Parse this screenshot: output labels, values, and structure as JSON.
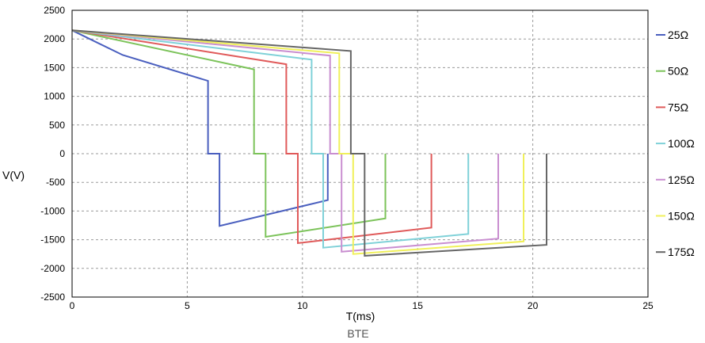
{
  "chart_data": {
    "type": "line",
    "title": "",
    "caption": "BTE",
    "xlabel": "T(ms)",
    "ylabel": "V(V)",
    "xlim": [
      0,
      25
    ],
    "ylim": [
      -2500,
      2500
    ],
    "xticks": [
      0,
      5,
      10,
      15,
      20,
      25
    ],
    "yticks": [
      2500,
      2000,
      1500,
      1000,
      500,
      0,
      -500,
      -1000,
      -1500,
      -2000,
      -2500
    ],
    "grid": true,
    "legend_position": "right",
    "series": [
      {
        "name": "25Ω",
        "color": "#4a5fbf",
        "x": [
          0,
          2.2,
          5.9,
          5.9,
          6.4,
          6.4,
          11.1,
          11.1
        ],
        "y": [
          2150,
          1720,
          1270,
          0,
          0,
          -1260,
          -810,
          0
        ]
      },
      {
        "name": "50Ω",
        "color": "#7cc35a",
        "x": [
          0,
          7.9,
          7.9,
          8.4,
          8.4,
          13.6,
          13.6
        ],
        "y": [
          2150,
          1470,
          0,
          0,
          -1450,
          -1130,
          0
        ]
      },
      {
        "name": "75Ω",
        "color": "#e05a5a",
        "x": [
          0,
          9.3,
          9.3,
          9.8,
          9.8,
          15.6,
          15.6
        ],
        "y": [
          2150,
          1560,
          0,
          0,
          -1560,
          -1290,
          0
        ]
      },
      {
        "name": "100Ω",
        "color": "#7fd1d8",
        "x": [
          0,
          10.4,
          10.4,
          10.9,
          10.9,
          17.2,
          17.2
        ],
        "y": [
          2150,
          1640,
          0,
          0,
          -1640,
          -1400,
          0
        ]
      },
      {
        "name": "125Ω",
        "color": "#c98ed0",
        "x": [
          0,
          11.2,
          11.2,
          11.7,
          11.7,
          18.5,
          18.5
        ],
        "y": [
          2150,
          1710,
          0,
          0,
          -1710,
          -1480,
          0
        ]
      },
      {
        "name": "150Ω",
        "color": "#f0f05a",
        "x": [
          0,
          11.6,
          11.6,
          12.2,
          12.2,
          19.6,
          19.6
        ],
        "y": [
          2150,
          1750,
          0,
          0,
          -1750,
          -1530,
          0
        ]
      },
      {
        "name": "175Ω",
        "color": "#666666",
        "x": [
          0,
          12.1,
          12.1,
          12.7,
          12.7,
          20.6,
          20.6
        ],
        "y": [
          2150,
          1790,
          0,
          0,
          -1780,
          -1590,
          0
        ]
      }
    ]
  }
}
